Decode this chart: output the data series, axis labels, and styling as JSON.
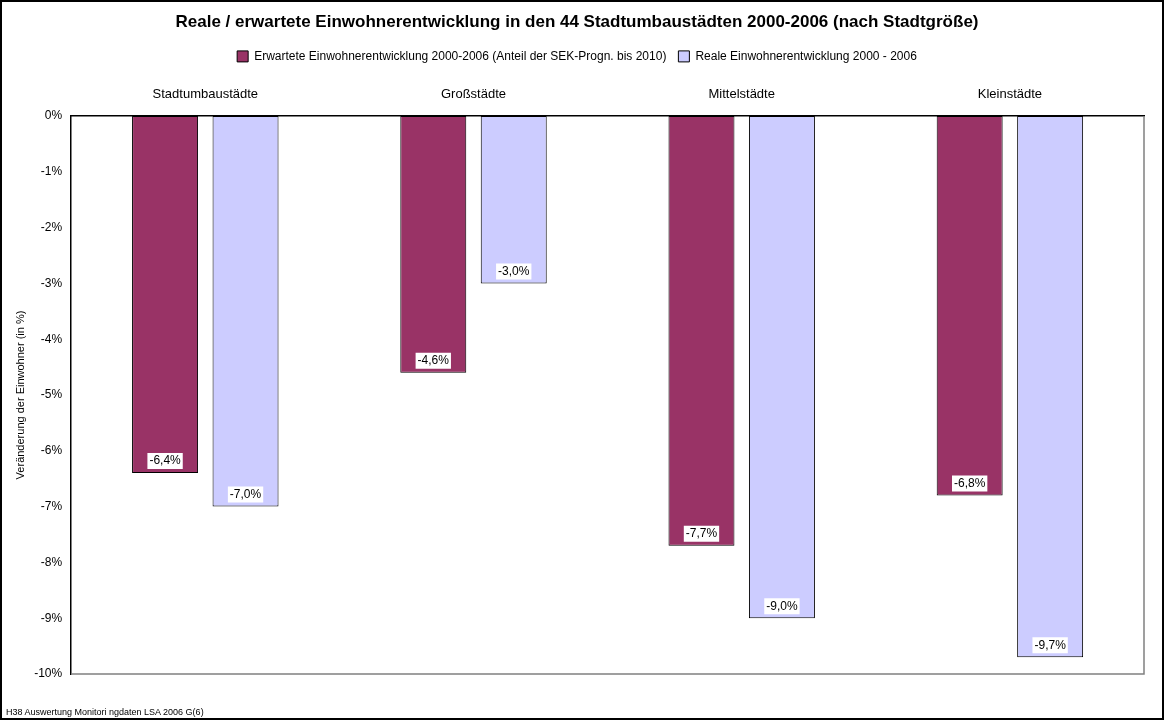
{
  "chart_data": {
    "type": "bar",
    "title": "Reale / erwartete Einwohnerentwicklung in den 44 Stadtumbaustädten 2000-2006 (nach Stadtgröße)",
    "ylabel": "Veränderung der Einwohner (in %)",
    "categories": [
      "Stadtumbaustädte",
      "Großstädte",
      "Mittelstädte",
      "Kleinstädte"
    ],
    "series": [
      {
        "name": "Erwartete Einwohnerentwicklung 2000-2006 (Anteil der SEK-Progn. bis 2010)",
        "color": "#993366",
        "values": [
          -6.4,
          -4.6,
          -7.7,
          -6.8
        ],
        "value_labels": [
          "-6,4%",
          "-4,6%",
          "-7,7%",
          "-6,8%"
        ]
      },
      {
        "name": "Reale Einwohnerentwicklung 2000 - 2006",
        "color": "#ccccff",
        "values": [
          -7.0,
          -3.0,
          -9.0,
          -9.7
        ],
        "value_labels": [
          "-7,0%",
          "-3,0%",
          "-9,0%",
          "-9,7%"
        ]
      }
    ],
    "ylim": [
      -10,
      0
    ],
    "yticks": [
      {
        "value": -10,
        "label": "-10%"
      },
      {
        "value": -9,
        "label": "-9%"
      },
      {
        "value": -8,
        "label": "-8%"
      },
      {
        "value": -7,
        "label": "-7%"
      },
      {
        "value": -6,
        "label": "-6%"
      },
      {
        "value": -5,
        "label": "-5%"
      },
      {
        "value": -4,
        "label": "-4%"
      },
      {
        "value": -3,
        "label": "-3%"
      },
      {
        "value": -2,
        "label": "-2%"
      },
      {
        "value": -1,
        "label": "-1%"
      },
      {
        "value": 0,
        "label": "0%"
      }
    ],
    "grid": false,
    "legend": "top",
    "annotations": [
      "H38 Auswertung Monitori ngdaten LSA 2006 G(6)"
    ]
  }
}
